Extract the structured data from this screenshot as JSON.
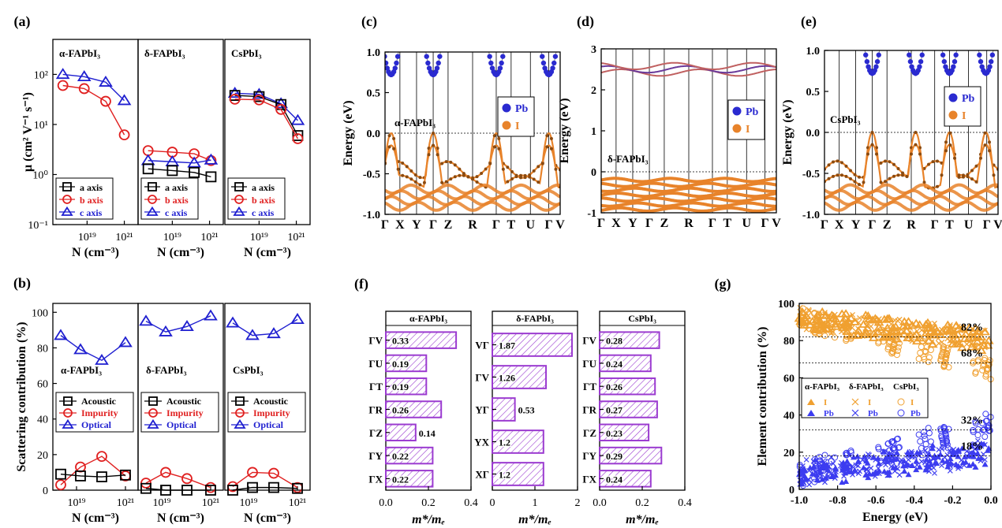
{
  "panels": {
    "a": {
      "label": "(a)",
      "ylabel": "μ (cm² V⁻¹ s⁻¹)",
      "xlabel": "N (cm⁻³)",
      "xticks": [
        "10¹⁹",
        "10²¹"
      ],
      "yticks": [
        "10⁻¹",
        "10⁰",
        "10¹",
        "10²"
      ],
      "subplots": [
        {
          "name": "α-FAPbI₃",
          "x": [
            5e+17,
            7e+18,
            1e+20,
            1e+21
          ],
          "series": [
            {
              "name": "c axis",
              "color": "#1f1fd0",
              "marker": "triangle",
              "values": [
                100,
                90,
                70,
                30
              ]
            },
            {
              "name": "b axis",
              "color": "#e02020",
              "marker": "circle",
              "values": [
                60,
                52,
                29,
                6.2
              ]
            }
          ]
        },
        {
          "name": "δ-FAPbI₃",
          "x": [
            5e+17,
            1e+19,
            1.5e+20,
            1.2e+21
          ],
          "series": [
            {
              "name": "b axis",
              "color": "#e02020",
              "marker": "circle",
              "values": [
                3.0,
                2.8,
                2.6,
                1.9
              ]
            },
            {
              "name": "c axis",
              "color": "#1f1fd0",
              "marker": "triangle",
              "values": [
                1.9,
                1.8,
                1.7,
                1.95
              ]
            },
            {
              "name": "a axis",
              "color": "#000000",
              "marker": "square",
              "values": [
                1.3,
                1.2,
                1.1,
                0.9
              ]
            }
          ]
        },
        {
          "name": "CsPbI₃",
          "x": [
            5e+17,
            1e+19,
            1.5e+20,
            1.2e+21
          ],
          "series": [
            {
              "name": "c axis",
              "color": "#1f1fd0",
              "marker": "triangle",
              "values": [
                42,
                40,
                26,
                12
              ]
            },
            {
              "name": "a axis",
              "color": "#000000",
              "marker": "square",
              "values": [
                38,
                36,
                25,
                6
              ]
            },
            {
              "name": "b axis",
              "color": "#e02020",
              "marker": "circle",
              "values": [
                32,
                31,
                20,
                5.2
              ]
            }
          ]
        }
      ],
      "legend": [
        {
          "label": "a axis",
          "color": "#000000",
          "marker": "square"
        },
        {
          "label": "b axis",
          "color": "#e02020",
          "marker": "circle"
        },
        {
          "label": "c axis",
          "color": "#1f1fd0",
          "marker": "triangle"
        }
      ]
    },
    "b": {
      "label": "(b)",
      "ylabel": "Scattering contribution (%)",
      "xlabel": "N (cm⁻³)",
      "xticks": [
        "10¹⁹",
        "10²¹"
      ],
      "yticks": [
        "0",
        "20",
        "40",
        "60",
        "80",
        "100"
      ],
      "subplots": [
        {
          "name": "α-FAPbI₃",
          "series": [
            {
              "name": "Optical",
              "color": "#1f1fd0",
              "marker": "triangle",
              "values": [
                87,
                79,
                73,
                83
              ]
            },
            {
              "name": "Impurity",
              "color": "#e02020",
              "marker": "circle",
              "values": [
                3,
                13,
                19,
                8
              ]
            },
            {
              "name": "Acoustic",
              "color": "#000000",
              "marker": "square",
              "values": [
                9,
                8,
                7.5,
                8.5
              ]
            }
          ]
        },
        {
          "name": "δ-FAPbI₃",
          "series": [
            {
              "name": "Optical",
              "color": "#1f1fd0",
              "marker": "triangle",
              "values": [
                95,
                89,
                92,
                98
              ]
            },
            {
              "name": "Impurity",
              "color": "#e02020",
              "marker": "circle",
              "values": [
                4,
                10,
                6.5,
                1.5
              ]
            },
            {
              "name": "Acoustic",
              "color": "#000000",
              "marker": "square",
              "values": [
                1,
                0,
                0,
                0
              ]
            }
          ]
        },
        {
          "name": "CsPbI₃",
          "series": [
            {
              "name": "Optical",
              "color": "#1f1fd0",
              "marker": "triangle",
              "values": [
                94,
                87,
                88,
                96
              ]
            },
            {
              "name": "Impurity",
              "color": "#e02020",
              "marker": "circle",
              "values": [
                2,
                10,
                9.5,
                1.5
              ]
            },
            {
              "name": "Acoustic",
              "color": "#000000",
              "marker": "square",
              "values": [
                0,
                1.5,
                1.5,
                1
              ]
            }
          ]
        }
      ],
      "legend": [
        {
          "label": "Acoustic",
          "color": "#000000",
          "marker": "square"
        },
        {
          "label": "Impurity",
          "color": "#e02020",
          "marker": "circle"
        },
        {
          "label": "Optical",
          "color": "#1f1fd0",
          "marker": "triangle"
        }
      ]
    },
    "c": {
      "label": "(c)",
      "material": "α-FAPbI₃",
      "ylabel": "Energy (eV)",
      "ylim": [
        -1.0,
        1.0
      ],
      "yticks": [
        "-1.0",
        "-0.5",
        "0.0",
        "0.5",
        "1.0"
      ],
      "kpoints": [
        "Γ",
        "X",
        "Y",
        "Γ",
        "Z",
        "R",
        "Γ",
        "T",
        "U",
        "Γ",
        "V"
      ],
      "legend": [
        {
          "label": "Pb",
          "color": "#2a2ad0"
        },
        {
          "label": "I",
          "color": "#e8832a"
        }
      ]
    },
    "d": {
      "label": "(d)",
      "material": "δ-FAPbI₃",
      "ylabel": "Energy (eV)",
      "ylim": [
        -1.0,
        3.0
      ],
      "yticks": [
        "-1",
        "0",
        "1",
        "2",
        "3"
      ],
      "kpoints": [
        "Γ",
        "X",
        "Y",
        "Γ",
        "Z",
        "R",
        "Γ",
        "T",
        "U",
        "Γ",
        "V"
      ],
      "legend": [
        {
          "label": "Pb",
          "color": "#2a2ad0"
        },
        {
          "label": "I",
          "color": "#e8832a"
        }
      ]
    },
    "e": {
      "label": "(e)",
      "material": "CsPbI₃",
      "ylabel": "Energy (eV)",
      "ylim": [
        -1.0,
        1.0
      ],
      "yticks": [
        "-1.0",
        "-0.5",
        "0.0",
        "0.5",
        "1.0"
      ],
      "kpoints": [
        "Γ",
        "X",
        "Y",
        "Γ",
        "Z",
        "R",
        "Γ",
        "T",
        "U",
        "Γ",
        "V"
      ],
      "legend": [
        {
          "label": "Pb",
          "color": "#2a2ad0"
        },
        {
          "label": "I",
          "color": "#e8832a"
        }
      ]
    },
    "f": {
      "label": "(f)",
      "xlabel": "m*/mₑ",
      "subplots": [
        {
          "name": "α-FAPbI₃",
          "xlim": [
            0,
            0.4
          ],
          "xticks": [
            "0.0",
            "0.2",
            "0.4"
          ],
          "bars": [
            {
              "k": "ΓV",
              "value": 0.33
            },
            {
              "k": "ΓU",
              "value": 0.19
            },
            {
              "k": "ΓT",
              "value": 0.19
            },
            {
              "k": "ΓR",
              "value": 0.26
            },
            {
              "k": "ΓZ",
              "value": 0.14
            },
            {
              "k": "ΓY",
              "value": 0.22
            },
            {
              "k": "ΓX",
              "value": 0.22
            }
          ]
        },
        {
          "name": "δ-FAPbI₃",
          "xlim": [
            0,
            2
          ],
          "xticks": [
            "0",
            "1",
            "2"
          ],
          "bars": [
            {
              "k": "VΓ",
              "value": 1.87
            },
            {
              "k": "ΓV",
              "value": 1.26
            },
            {
              "k": "YΓ",
              "value": 0.53
            },
            {
              "k": "YX",
              "value": 1.2
            },
            {
              "k": "XΓ",
              "value": 1.2
            }
          ]
        },
        {
          "name": "CsPbI₃",
          "xlim": [
            0,
            0.4
          ],
          "xticks": [
            "0.0",
            "0.2",
            "0.4"
          ],
          "bars": [
            {
              "k": "ΓV",
              "value": 0.28
            },
            {
              "k": "ΓU",
              "value": 0.24
            },
            {
              "k": "ΓT",
              "value": 0.26
            },
            {
              "k": "ΓR",
              "value": 0.27
            },
            {
              "k": "ΓZ",
              "value": 0.23
            },
            {
              "k": "ΓY",
              "value": 0.29
            },
            {
              "k": "ΓX",
              "value": 0.24
            }
          ]
        }
      ]
    },
    "g": {
      "label": "(g)",
      "ylabel": "Element contribution (%)",
      "xlabel": "Energy (eV)",
      "xlim": [
        -1.0,
        0.0
      ],
      "ylim": [
        0,
        100
      ],
      "xticks": [
        "-1.0",
        "-0.8",
        "-0.6",
        "-0.4",
        "-0.2",
        "0.0"
      ],
      "yticks": [
        "0",
        "20",
        "40",
        "60",
        "80",
        "100"
      ],
      "reference_lines": [
        {
          "value": 82,
          "label": "82%"
        },
        {
          "value": 68,
          "label": "68%"
        },
        {
          "value": 32,
          "label": "32%"
        },
        {
          "value": 18,
          "label": "18%"
        }
      ],
      "legend": {
        "columns": [
          "α-FAPbI₃",
          "δ-FAPbI₃",
          "CsPbI₃"
        ],
        "rows": [
          {
            "element": "I",
            "color": "#f0a030"
          },
          {
            "element": "Pb",
            "color": "#3c3cf0"
          }
        ]
      }
    }
  },
  "chart_data": [
    {
      "type": "line",
      "title": "(a)",
      "ylabel": "μ (cm² V⁻¹ s⁻¹)",
      "xlabel": "N (cm⁻³)",
      "yscale": "log",
      "ylim": [
        0.1,
        500
      ]
    },
    {
      "type": "line",
      "title": "(b)",
      "ylabel": "Scattering contribution (%)",
      "xlabel": "N (cm⁻³)",
      "ylim": [
        0,
        105
      ]
    },
    {
      "type": "line",
      "title": "(c)",
      "ylabel": "Energy (eV)",
      "ylim": [
        -1,
        1
      ]
    },
    {
      "type": "line",
      "title": "(d)",
      "ylabel": "Energy (eV)",
      "ylim": [
        -1,
        3
      ]
    },
    {
      "type": "line",
      "title": "(e)",
      "ylabel": "Energy (eV)",
      "ylim": [
        -1,
        1
      ]
    },
    {
      "type": "bar",
      "title": "(f)",
      "xlabel": "m*/mₑ"
    },
    {
      "type": "scatter",
      "title": "(g)",
      "ylabel": "Element contribution (%)",
      "xlabel": "Energy (eV)",
      "xlim": [
        -1,
        0
      ],
      "ylim": [
        0,
        100
      ]
    }
  ]
}
